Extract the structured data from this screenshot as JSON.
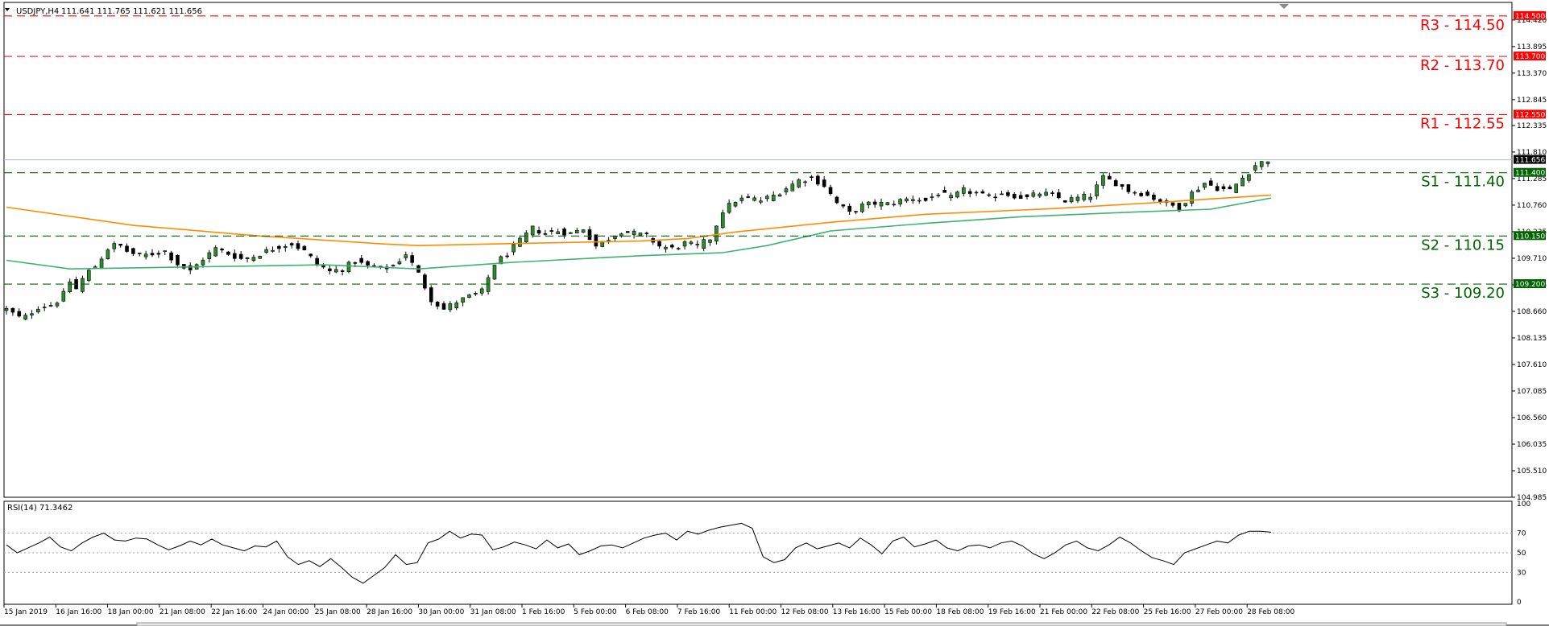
{
  "chart_data": [
    {
      "type": "candlestick",
      "symbol_header": "USDJPY,H4",
      "ohlc_readout": "111.641 111.765 111.621 111.656",
      "current_price": "111.656",
      "ylim": [
        104.985,
        114.72
      ],
      "price_ticks": [
        "114.420",
        "113.895",
        "113.370",
        "112.845",
        "112.335",
        "111.810",
        "111.285",
        "110.760",
        "110.235",
        "109.710",
        "109.185",
        "108.660",
        "108.135",
        "107.610",
        "107.085",
        "106.560",
        "106.035",
        "105.510",
        "104.985"
      ],
      "x_tick_labels": [
        "15 Jan 2019",
        "16 Jan 16:00",
        "18 Jan 00:00",
        "21 Jan 08:00",
        "22 Jan 16:00",
        "24 Jan 00:00",
        "25 Jan 08:00",
        "28 Jan 16:00",
        "30 Jan 00:00",
        "31 Jan 08:00",
        "1 Feb 16:00",
        "5 Feb 00:00",
        "6 Feb 08:00",
        "7 Feb 16:00",
        "11 Feb 00:00",
        "12 Feb 08:00",
        "13 Feb 16:00",
        "15 Feb 00:00",
        "18 Feb 08:00",
        "19 Feb 16:00",
        "21 Feb 00:00",
        "22 Feb 08:00",
        "25 Feb 16:00",
        "27 Feb 00:00",
        "28 Feb 08:00"
      ],
      "levels": [
        {
          "name": "R3",
          "text": "R3 - 114.50",
          "value": 114.5,
          "tag": "114.500",
          "color": "#ff0000"
        },
        {
          "name": "R2",
          "text": "R2 - 113.70",
          "value": 113.7,
          "tag": "113.700",
          "color": "#ff0000"
        },
        {
          "name": "R1",
          "text": "R1 - 112.55",
          "value": 112.55,
          "tag": "112.550",
          "color": "#ff0000"
        },
        {
          "name": "S1",
          "text": "S1 - 111.40",
          "value": 111.4,
          "tag": "111.400",
          "color": "#006400"
        },
        {
          "name": "S2",
          "text": "S2 - 110.15",
          "value": 110.15,
          "tag": "110.150",
          "color": "#006400"
        },
        {
          "name": "S3",
          "text": "S3 - 109.20",
          "value": 109.2,
          "tag": "109.200",
          "color": "#006400"
        }
      ],
      "close_path": [
        [
          0,
          108.7
        ],
        [
          5,
          108.5
        ],
        [
          10,
          108.75
        ],
        [
          15,
          108.8
        ],
        [
          18,
          109.0
        ],
        [
          20,
          109.25
        ],
        [
          22,
          109.1
        ],
        [
          25,
          109.4
        ],
        [
          28,
          109.55
        ],
        [
          32,
          109.9
        ],
        [
          35,
          110.0
        ],
        [
          38,
          109.85
        ],
        [
          42,
          109.75
        ],
        [
          46,
          109.8
        ],
        [
          50,
          109.85
        ],
        [
          54,
          109.6
        ],
        [
          58,
          109.45
        ],
        [
          62,
          109.7
        ],
        [
          66,
          109.9
        ],
        [
          70,
          109.8
        ],
        [
          74,
          109.7
        ],
        [
          78,
          109.75
        ],
        [
          82,
          109.85
        ],
        [
          86,
          109.95
        ],
        [
          90,
          110.0
        ],
        [
          94,
          109.85
        ],
        [
          98,
          109.6
        ],
        [
          102,
          109.45
        ],
        [
          106,
          109.5
        ],
        [
          110,
          109.65
        ],
        [
          114,
          109.55
        ],
        [
          118,
          109.5
        ],
        [
          122,
          109.55
        ],
        [
          126,
          109.8
        ],
        [
          130,
          109.4
        ],
        [
          134,
          108.9
        ],
        [
          138,
          108.7
        ],
        [
          142,
          108.85
        ],
        [
          146,
          108.95
        ],
        [
          150,
          109.05
        ],
        [
          154,
          109.6
        ],
        [
          158,
          109.8
        ],
        [
          162,
          110.05
        ],
        [
          166,
          110.3
        ],
        [
          170,
          110.2
        ],
        [
          174,
          110.25
        ],
        [
          178,
          110.2
        ],
        [
          182,
          110.3
        ],
        [
          186,
          109.95
        ],
        [
          190,
          110.1
        ],
        [
          194,
          110.25
        ],
        [
          198,
          110.2
        ],
        [
          202,
          110.15
        ],
        [
          206,
          109.95
        ],
        [
          210,
          109.9
        ],
        [
          214,
          110.0
        ],
        [
          218,
          109.95
        ],
        [
          222,
          110.1
        ],
        [
          226,
          110.65
        ],
        [
          230,
          110.85
        ],
        [
          234,
          110.9
        ],
        [
          238,
          110.85
        ],
        [
          242,
          110.95
        ],
        [
          246,
          111.1
        ],
        [
          250,
          111.25
        ],
        [
          254,
          111.3
        ],
        [
          258,
          111.15
        ],
        [
          262,
          110.8
        ],
        [
          266,
          110.6
        ],
        [
          270,
          110.75
        ],
        [
          274,
          110.8
        ],
        [
          278,
          110.78
        ],
        [
          282,
          110.85
        ],
        [
          286,
          110.9
        ],
        [
          290,
          110.85
        ],
        [
          294,
          111.0
        ],
        [
          298,
          110.9
        ],
        [
          302,
          111.05
        ],
        [
          306,
          111.0
        ],
        [
          310,
          110.9
        ],
        [
          314,
          111.0
        ],
        [
          318,
          110.95
        ],
        [
          322,
          110.9
        ],
        [
          326,
          111.0
        ],
        [
          330,
          110.95
        ],
        [
          334,
          110.85
        ],
        [
          338,
          110.9
        ],
        [
          342,
          110.95
        ],
        [
          346,
          111.3
        ],
        [
          350,
          111.2
        ],
        [
          354,
          111.05
        ],
        [
          358,
          111.0
        ],
        [
          362,
          110.9
        ],
        [
          366,
          110.8
        ],
        [
          370,
          110.7
        ],
        [
          374,
          111.0
        ],
        [
          378,
          111.2
        ],
        [
          382,
          111.1
        ],
        [
          386,
          111.05
        ],
        [
          390,
          111.3
        ],
        [
          394,
          111.55
        ],
        [
          398,
          111.656
        ]
      ],
      "series": [
        {
          "type": "moving-average",
          "color": "#ff8c00",
          "points": [
            [
              0,
              110.72
            ],
            [
              40,
              110.36
            ],
            [
              80,
              110.15
            ],
            [
              120,
              109.99
            ],
            [
              130,
              109.96
            ],
            [
              160,
              110.0
            ],
            [
              200,
              110.05
            ],
            [
              215,
              110.1
            ],
            [
              230,
              110.23
            ],
            [
              260,
              110.42
            ],
            [
              290,
              110.58
            ],
            [
              330,
              110.69
            ],
            [
              360,
              110.8
            ],
            [
              399,
              110.96
            ]
          ]
        },
        {
          "type": "moving-average",
          "color": "#3cb371",
          "points": [
            [
              0,
              109.67
            ],
            [
              20,
              109.5
            ],
            [
              40,
              109.52
            ],
            [
              80,
              109.56
            ],
            [
              100,
              109.58
            ],
            [
              130,
              109.5
            ],
            [
              160,
              109.63
            ],
            [
              200,
              109.76
            ],
            [
              226,
              109.82
            ],
            [
              240,
              109.96
            ],
            [
              260,
              110.25
            ],
            [
              290,
              110.4
            ],
            [
              320,
              110.53
            ],
            [
              350,
              110.61
            ],
            [
              380,
              110.68
            ],
            [
              399,
              110.9
            ]
          ]
        }
      ]
    },
    {
      "type": "line",
      "title": "RSI(14) 71.3462",
      "ylim": [
        0,
        100
      ],
      "y_ticks": [
        "100",
        "70",
        "50",
        "30",
        "0"
      ],
      "levels": [
        70,
        50,
        30
      ],
      "values": [
        58,
        50,
        55,
        60,
        66,
        56,
        52,
        60,
        66,
        70,
        63,
        62,
        65,
        64,
        58,
        53,
        57,
        62,
        58,
        64,
        58,
        55,
        52,
        57,
        56,
        62,
        46,
        38,
        42,
        36,
        44,
        35,
        25,
        19,
        27,
        35,
        48,
        38,
        40,
        60,
        64,
        72,
        65,
        69,
        68,
        53,
        56,
        61,
        58,
        54,
        63,
        55,
        59,
        48,
        52,
        57,
        58,
        55,
        60,
        65,
        68,
        70,
        63,
        72,
        69,
        73,
        76,
        78,
        80,
        75,
        46,
        40,
        43,
        55,
        60,
        54,
        57,
        60,
        55,
        65,
        58,
        49,
        62,
        66,
        56,
        59,
        63,
        55,
        52,
        57,
        58,
        55,
        60,
        62,
        57,
        49,
        44,
        50,
        58,
        62,
        55,
        52,
        58,
        66,
        60,
        52,
        45,
        42,
        38,
        50,
        54,
        58,
        62,
        60,
        68,
        72,
        72,
        71
      ]
    }
  ],
  "colors": {
    "bull_candle": "#2e8b2e",
    "bear_candle": "#000000",
    "resistance": "#ff0000",
    "support": "#006400",
    "price_tag_bg": "#000000"
  }
}
